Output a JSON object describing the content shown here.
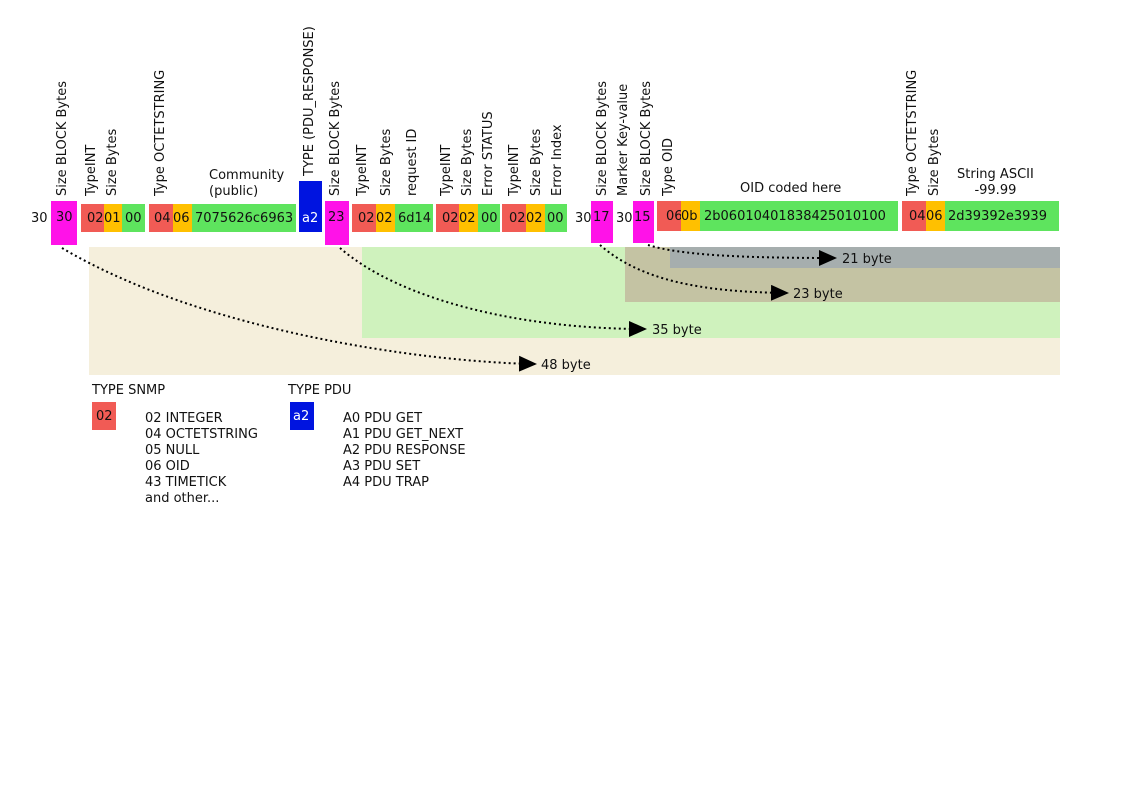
{
  "colors": {
    "red": "#f15b55",
    "orange": "#ffc000",
    "green": "#5ee45e",
    "magenta": "#ff12e8",
    "blue": "#0014e0",
    "span48": "#f5efdc",
    "span35": "#cff2bd",
    "span23": "#c4c3a3",
    "span21": "#a6aeae"
  },
  "labels": {
    "size_block_1": "Size BLOCK Bytes",
    "typeint_1": "TypeINT",
    "size_bytes_1": "Size Bytes",
    "type_octetstring_1": "Type OCTETSTRING",
    "community_line1": "Community",
    "community_line2": "(public)",
    "type_pdu_response": "TYPE (PDU_RESPONSE)",
    "size_block_2": "Size BLOCK Bytes",
    "typeint_2": "TypeINT",
    "size_bytes_2": "Size Bytes",
    "request_id": "request ID",
    "typeint_3": "TypeINT",
    "size_bytes_3": "Size Bytes",
    "error_status": "Error STATUS",
    "typeint_4": "TypeINT",
    "size_bytes_4": "Size Bytes",
    "error_index": "Error Index",
    "size_block_3": "Size BLOCK Bytes",
    "marker_key_value": "Marker Key-value",
    "size_block_4": "Size BLOCK Bytes",
    "type_oid": "Type OID",
    "oid_coded_here": "OID coded here",
    "type_octetstring_2": "Type OCTETSTRING",
    "size_bytes_5": "Size Bytes",
    "string_ascii_line1": "String ASCII",
    "string_ascii_line2": "-99.99"
  },
  "bytes": {
    "b30_plain": "30",
    "b30_size": "30",
    "b02_a": "02",
    "b01": "01",
    "b00_a": "00",
    "b04_a": "04",
    "b06_a": "06",
    "community_hex": "7075626c6963",
    "pdu_a2": "a2",
    "b23": "23",
    "b02_b": "02",
    "b02_c": "02",
    "req_id_hex": "6d14",
    "b02_d": "02",
    "b02_e": "02",
    "b00_b": "00",
    "b02_f": "02",
    "b02_g": "02",
    "b00_c": "00",
    "b30_plain2": "30",
    "b17": "17",
    "b30_plain3": "30",
    "b15": "15",
    "b06_b": "06",
    "b0b": "0b",
    "oid_hex": "2b06010401838425010100",
    "b04_b": "04",
    "b06_c": "06",
    "string_hex": "2d39392e3939"
  },
  "spans": {
    "s21": "21 byte",
    "s23": "23 byte",
    "s35": "35 byte",
    "s48": "48 byte"
  },
  "legend_snmp": {
    "title": "TYPE SNMP",
    "swatch": "02",
    "items": [
      "02 INTEGER",
      "04 OCTETSTRING",
      "05 NULL",
      "06 OID",
      "43 TIMETICK",
      "and other..."
    ]
  },
  "legend_pdu": {
    "title": "TYPE PDU",
    "swatch": "a2",
    "items": [
      "A0 PDU GET",
      "A1 PDU GET_NEXT",
      "A2 PDU RESPONSE",
      "A3 PDU SET",
      "A4 PDU TRAP"
    ]
  }
}
